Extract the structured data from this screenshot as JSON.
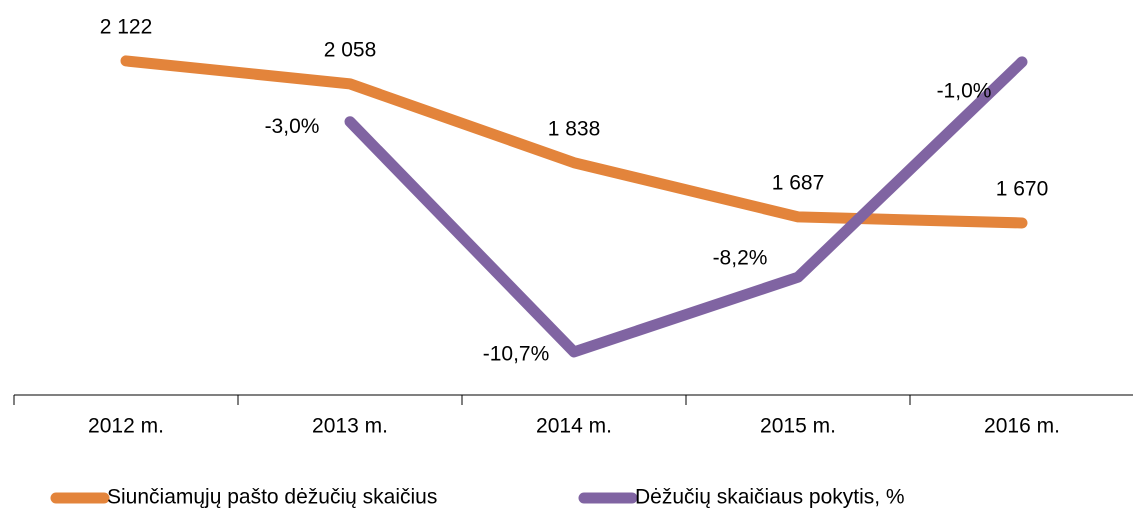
{
  "chart_data": {
    "type": "line",
    "categories": [
      "2012 m.",
      "2013 m.",
      "2014 m.",
      "2015 m.",
      "2016 m."
    ],
    "series": [
      {
        "name": "Siunčiamųjų pašto dėžučių skaičius",
        "color": "#e3843b",
        "values": [
          2122,
          2058,
          1838,
          1687,
          1670
        ],
        "value_labels": [
          "2 122",
          "2 058",
          "1 838",
          "1 687",
          "1 670"
        ]
      },
      {
        "name": "Dėžučių skaičiaus pokytis, %",
        "color": "#8064a2",
        "axis": "y2",
        "values": [
          null,
          -3.0,
          -10.7,
          -8.2,
          -1.0
        ],
        "value_labels": [
          null,
          "-3,0%",
          "-10,7%",
          "-8,2%",
          "-1,0%"
        ]
      }
    ],
    "ylim": [
      1190,
      2292
    ],
    "y2lim": [
      -12.14,
      1.07
    ],
    "grid": false,
    "legend": "bottom"
  }
}
